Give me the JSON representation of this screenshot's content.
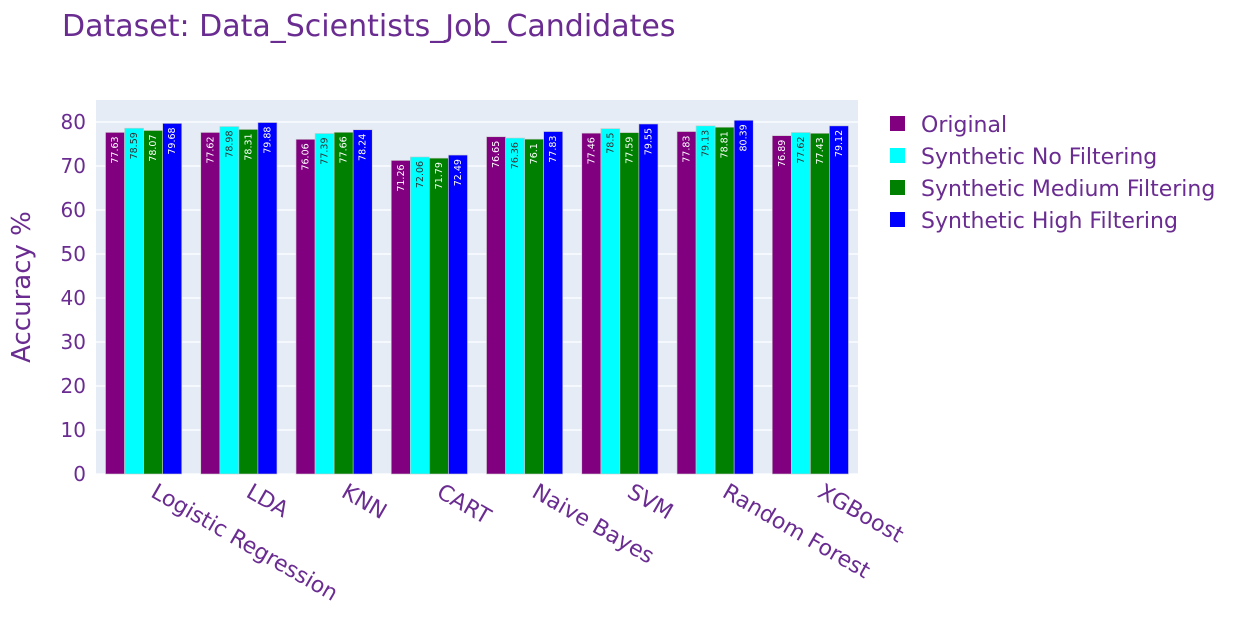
{
  "colors": {
    "text": "#6a2c91",
    "plot_bg": "#e5ecf6",
    "grid": "#ffffff",
    "bar_outline": "#c9c9c9"
  },
  "chart_data": {
    "type": "bar",
    "title": "Dataset: Data_Scientists_Job_Candidates",
    "xlabel": "",
    "ylabel": "Accuracy %",
    "ylim": [
      0,
      85
    ],
    "yticks": [
      0,
      10,
      20,
      30,
      40,
      50,
      60,
      70,
      80
    ],
    "grid": true,
    "legend_position": "right",
    "categories": [
      "Logistic Regression",
      "LDA",
      "KNN",
      "CART",
      "Naive Bayes",
      "SVM",
      "Random Forest",
      "XGBoost"
    ],
    "series": [
      {
        "name": "Original",
        "color": "#800080",
        "label_color": "#ffffff",
        "values": [
          77.63,
          77.62,
          76.06,
          71.26,
          76.65,
          77.46,
          77.83,
          76.89
        ],
        "labels": [
          "77.63",
          "77.62",
          "76.06",
          "71.26",
          "76.65",
          "77.46",
          "77.83",
          "76.89"
        ]
      },
      {
        "name": "Synthetic No Filtering",
        "color": "#00ffff",
        "label_color": "#333333",
        "values": [
          78.59,
          78.98,
          77.39,
          72.06,
          76.36,
          78.5,
          79.13,
          77.62
        ],
        "labels": [
          "78.59",
          "78.98",
          "77.39",
          "72.06",
          "76.36",
          "78.5",
          "79.13",
          "77.62"
        ]
      },
      {
        "name": "Synthetic Medium Filtering",
        "color": "#008000",
        "label_color": "#ffffff",
        "values": [
          78.07,
          78.31,
          77.66,
          71.79,
          76.1,
          77.59,
          78.81,
          77.43
        ],
        "labels": [
          "78.07",
          "78.31",
          "77.66",
          "71.79",
          "76.1",
          "77.59",
          "78.81",
          "77.43"
        ]
      },
      {
        "name": "Synthetic High Filtering",
        "color": "#0000ff",
        "label_color": "#ffffff",
        "values": [
          79.68,
          79.88,
          78.24,
          72.49,
          77.83,
          79.55,
          80.39,
          79.12
        ],
        "labels": [
          "79.68",
          "79.88",
          "78.24",
          "72.49",
          "77.83",
          "79.55",
          "80.39",
          "79.12"
        ]
      }
    ]
  }
}
